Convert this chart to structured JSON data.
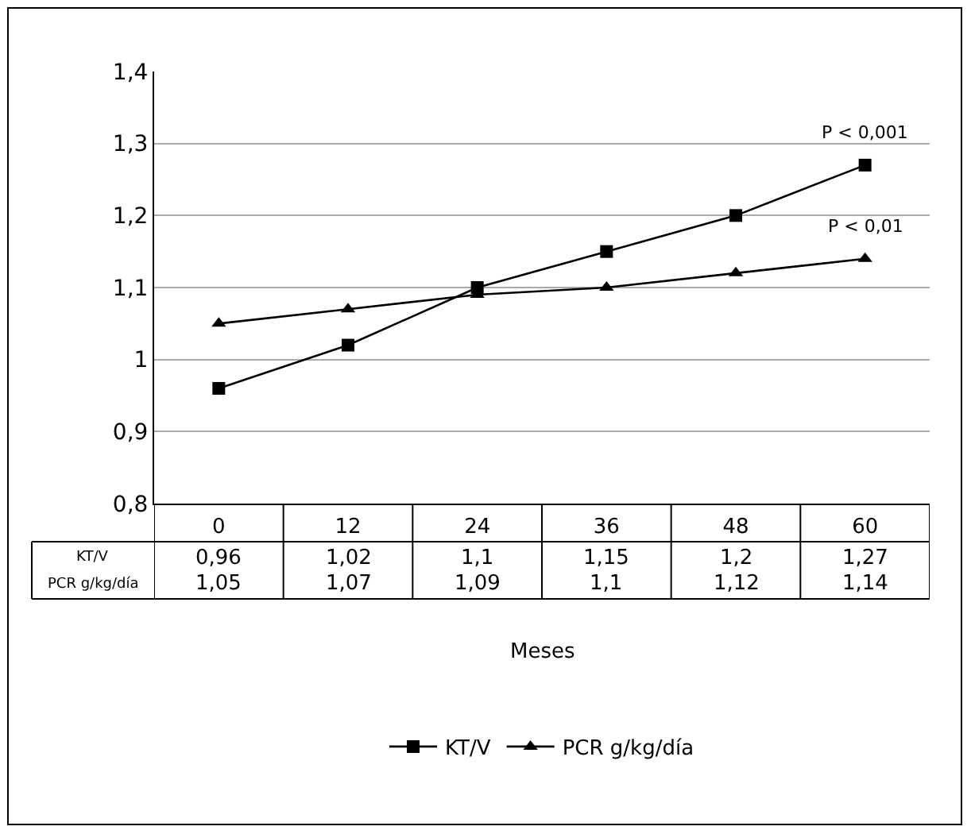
{
  "chart_data": {
    "type": "line",
    "xlabel": "Meses",
    "categories": [
      "0",
      "12",
      "24",
      "36",
      "48",
      "60"
    ],
    "series": [
      {
        "name": "KT/V",
        "color": "#000000",
        "marker": "square",
        "values": [
          0.96,
          1.02,
          1.1,
          1.15,
          1.2,
          1.27
        ],
        "value_labels": [
          "0,96",
          "1,02",
          "1,1",
          "1,15",
          "1,2",
          "1,27"
        ]
      },
      {
        "name": "PCR g/kg/día",
        "color": "#000000",
        "marker": "triangle",
        "values": [
          1.05,
          1.07,
          1.09,
          1.1,
          1.12,
          1.14
        ],
        "value_labels": [
          "1,05",
          "1,07",
          "1,09",
          "1,1",
          "1,12",
          "1,14"
        ]
      }
    ],
    "ylim": [
      0.8,
      1.4
    ],
    "yticks": [
      {
        "value": 0.8,
        "label": "0,8"
      },
      {
        "value": 0.9,
        "label": "0,9"
      },
      1,
      {
        "value": 1.1,
        "label": "1,1"
      },
      {
        "value": 1.2,
        "label": "1,2"
      },
      {
        "value": 1.3,
        "label": "1,3"
      },
      {
        "value": 1.4,
        "label": "1,4"
      }
    ],
    "annotations": [
      {
        "text": "P < 0,001",
        "x": "60",
        "y": 1.27
      },
      {
        "text": "P < 0,01",
        "x": "60",
        "y": 1.14
      }
    ],
    "grid": "y",
    "legend": "bottom",
    "line_style": "solid"
  }
}
